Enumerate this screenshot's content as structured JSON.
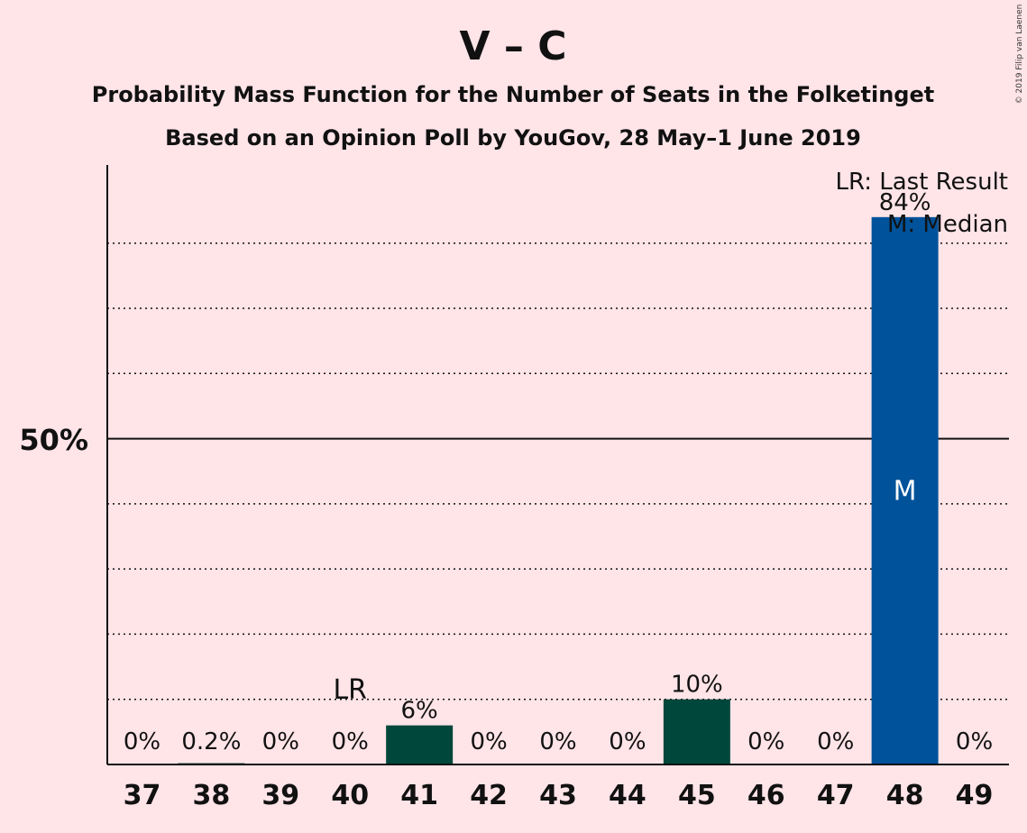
{
  "chart_data": {
    "type": "bar",
    "title": "V – C",
    "subtitle_1": "Probability Mass Function for the Number of Seats in the Folketinget",
    "subtitle_2": "Based on an Opinion Poll by YouGov, 28 May–1 June 2019",
    "copyright": "© 2019 Filip van Laenen",
    "categories": [
      "37",
      "38",
      "39",
      "40",
      "41",
      "42",
      "43",
      "44",
      "45",
      "46",
      "47",
      "48",
      "49"
    ],
    "values": [
      0,
      0.2,
      0,
      0,
      6,
      0,
      0,
      0,
      10,
      0,
      0,
      84,
      0
    ],
    "data_labels": [
      "0%",
      "0.2%",
      "0%",
      "0%",
      "6%",
      "0%",
      "0%",
      "0%",
      "10%",
      "0%",
      "0%",
      "84%",
      "0%"
    ],
    "ylim": [
      0,
      92
    ],
    "y_tick_label": "50%",
    "y_tick_value": 50,
    "gridlines": [
      10,
      20,
      30,
      40,
      60,
      70,
      80
    ],
    "colors": {
      "background": "#ffe4e8",
      "bar_default": "#00473b",
      "bar_median": "#00529a"
    },
    "median_seat": "48",
    "median_marker": "M",
    "last_result_seat": "40",
    "last_result_marker": "LR",
    "legend": {
      "lr": "LR: Last Result",
      "m": "M: Median"
    }
  }
}
